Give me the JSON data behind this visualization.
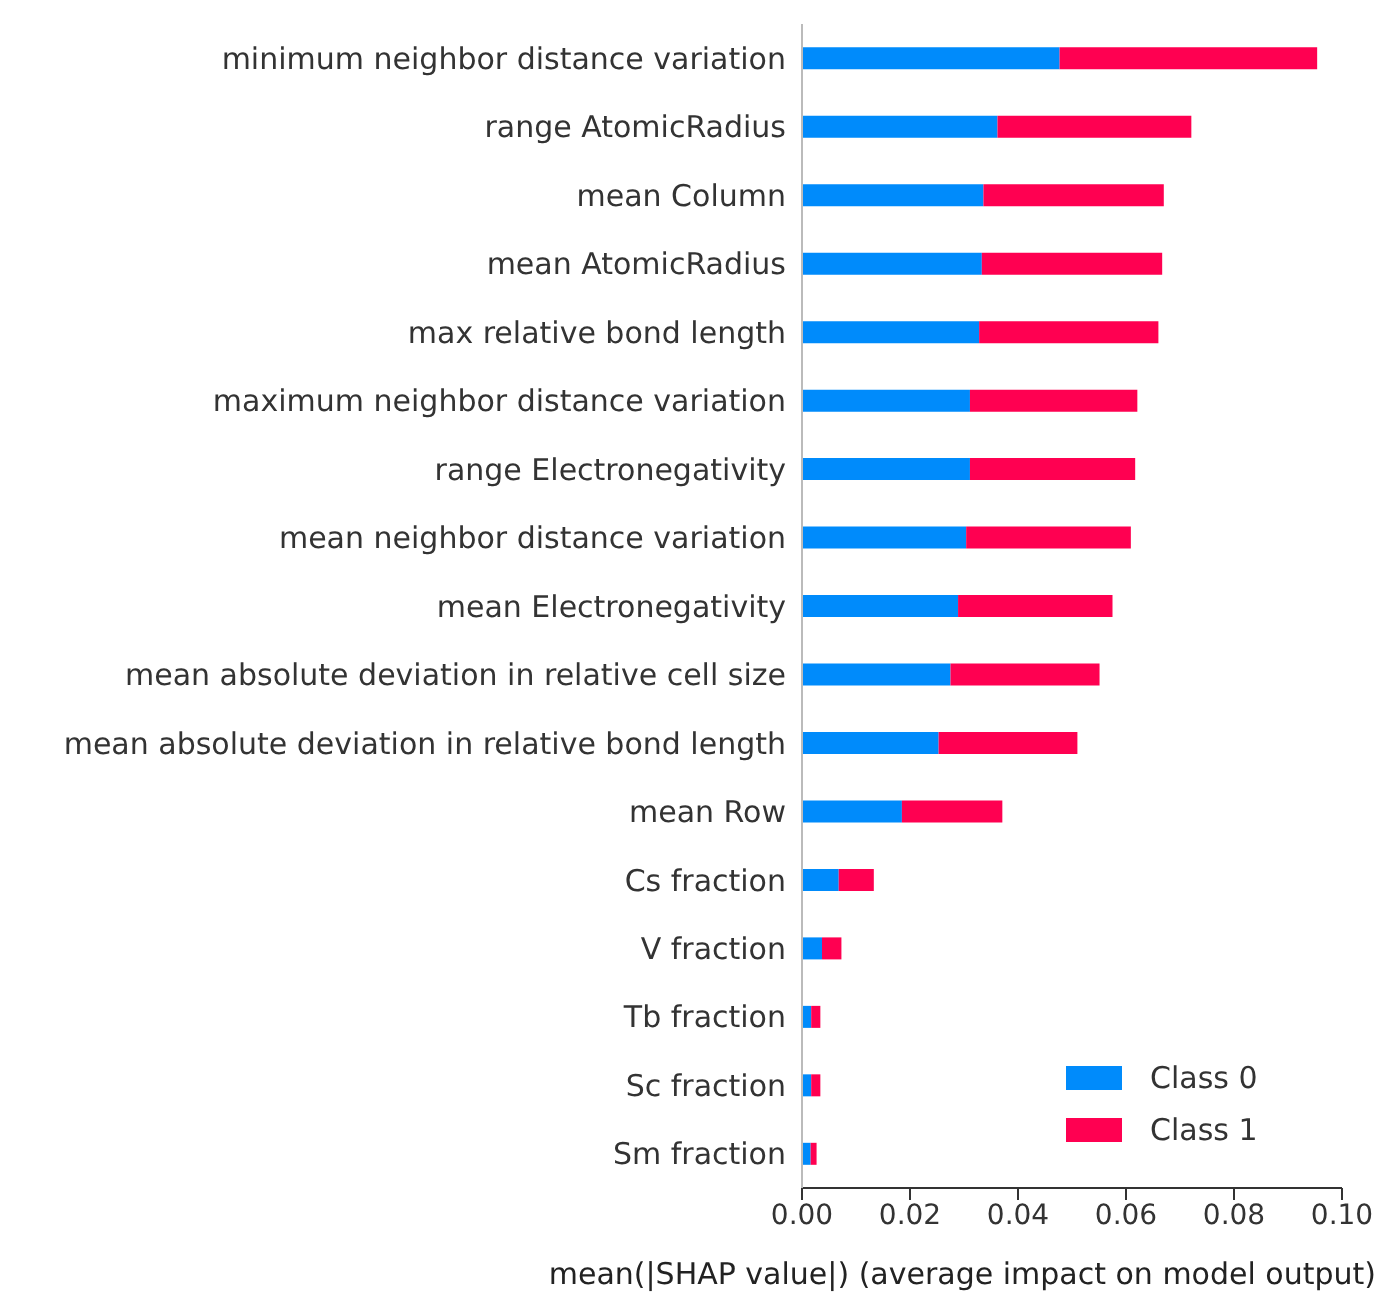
{
  "chart_data": {
    "type": "bar",
    "orientation": "horizontal",
    "stacked": true,
    "xlabel": "mean(|SHAP value|) (average impact on model output)",
    "categories": [
      "minimum neighbor distance variation",
      "range AtomicRadius",
      "mean Column",
      "mean AtomicRadius",
      "max relative bond length",
      "maximum neighbor distance variation",
      "range Electronegativity",
      "mean neighbor distance variation",
      "mean Electronegativity",
      "mean absolute deviation in relative cell size",
      "mean absolute deviation in relative bond length",
      "mean Row",
      "Cs fraction",
      "V fraction",
      "Tb fraction",
      "Sc fraction",
      "Sm fraction"
    ],
    "series": [
      {
        "name": "Class 0",
        "color": "#008bfb",
        "values": [
          0.0477,
          0.0362,
          0.0336,
          0.0333,
          0.0328,
          0.0311,
          0.0311,
          0.0304,
          0.0289,
          0.0275,
          0.0253,
          0.0185,
          0.0068,
          0.0037,
          0.0017,
          0.0017,
          0.0016
        ]
      },
      {
        "name": "Class 1",
        "color": "#ff0051",
        "values": [
          0.0477,
          0.0359,
          0.0334,
          0.0334,
          0.0332,
          0.031,
          0.0306,
          0.0305,
          0.0286,
          0.0276,
          0.0257,
          0.0186,
          0.0065,
          0.0036,
          0.0017,
          0.0017,
          0.0011
        ]
      }
    ],
    "xlim": [
      0,
      0.1
    ],
    "xticks": [
      {
        "value": 0,
        "label": "0.00"
      },
      0.02,
      0.04,
      0.06,
      0.08,
      {
        "value": 0.1,
        "label": "0.10"
      }
    ],
    "legend": "bottom right",
    "grid": false
  }
}
